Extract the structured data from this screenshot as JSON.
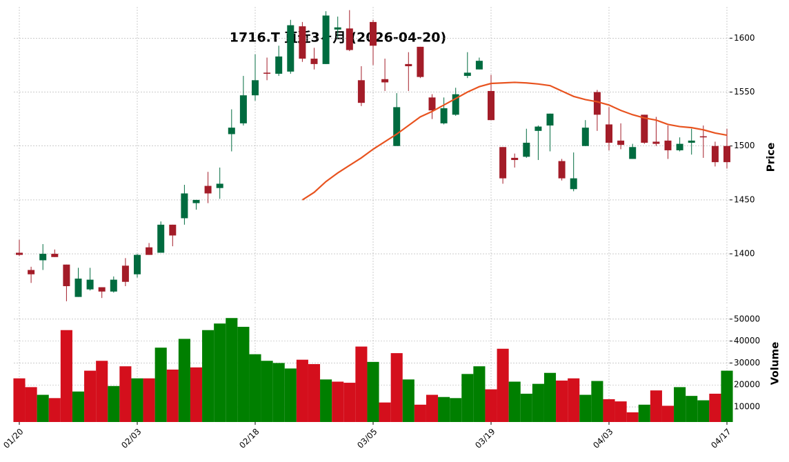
{
  "chart_data": {
    "type": "candlestick",
    "title": "1716.T 直近3ヶ月 (2026-04-20)",
    "y_label": "Price",
    "y2_label": "Volume",
    "categories": [
      "01/20",
      null,
      null,
      null,
      null,
      null,
      null,
      null,
      null,
      null,
      "02/03",
      null,
      null,
      null,
      null,
      null,
      null,
      null,
      null,
      null,
      "02/18",
      null,
      null,
      null,
      null,
      null,
      null,
      null,
      null,
      null,
      "03/05",
      null,
      null,
      null,
      null,
      null,
      null,
      null,
      null,
      null,
      "03/19",
      null,
      null,
      null,
      null,
      null,
      null,
      null,
      null,
      null,
      "04/03",
      null,
      null,
      null,
      null,
      null,
      null,
      null,
      null,
      null,
      "04/17"
    ],
    "open": [
      1401,
      1385,
      1394,
      1400,
      1390,
      1360,
      1367,
      1369,
      1365,
      1389,
      1381,
      1406,
      1401,
      1427,
      1433,
      1447,
      1463,
      1461,
      1511,
      1521,
      1547,
      1568,
      1567,
      1569,
      1611,
      1581,
      1576,
      1608,
      1609,
      1561,
      1615,
      1562,
      1500,
      1576,
      1592,
      1545,
      1521,
      1529,
      1565,
      1571,
      1551,
      1499,
      1489,
      1490,
      1514,
      1519,
      1486,
      1460,
      1500,
      1550,
      1520,
      1505,
      1488,
      1529,
      1504,
      1505,
      1496,
      1503,
      1509,
      1500,
      1500
    ],
    "high": [
      1413,
      1388,
      1409,
      1404,
      1390,
      1387,
      1387,
      1369,
      1379,
      1396,
      1400,
      1410,
      1430,
      1427,
      1464,
      1450,
      1476,
      1480,
      1534,
      1565,
      1585,
      1582,
      1593,
      1617,
      1615,
      1591,
      1625,
      1620,
      1626,
      1574,
      1617,
      1581,
      1549,
      1587,
      1592,
      1548,
      1545,
      1554,
      1587,
      1582,
      1566,
      1499,
      1493,
      1516,
      1519,
      1530,
      1488,
      1494,
      1524,
      1552,
      1536,
      1521,
      1502,
      1529,
      1527,
      1519,
      1508,
      1516,
      1519,
      1504,
      1516
    ],
    "low": [
      1398,
      1373,
      1385,
      1397,
      1356,
      1360,
      1366,
      1359,
      1364,
      1370,
      1378,
      1399,
      1401,
      1407,
      1427,
      1441,
      1447,
      1451,
      1495,
      1519,
      1542,
      1561,
      1565,
      1567,
      1578,
      1571,
      1576,
      1600,
      1588,
      1537,
      1575,
      1551,
      1500,
      1551,
      1563,
      1525,
      1520,
      1528,
      1563,
      1571,
      1524,
      1465,
      1480,
      1489,
      1487,
      1495,
      1468,
      1458,
      1500,
      1514,
      1496,
      1497,
      1488,
      1502,
      1500,
      1488,
      1495,
      1492,
      1489,
      1481,
      1479
    ],
    "close": [
      1399,
      1381,
      1400,
      1397,
      1370,
      1377,
      1376,
      1365,
      1376,
      1374,
      1399,
      1399,
      1427,
      1417,
      1456,
      1450,
      1456,
      1465,
      1517,
      1547,
      1561,
      1567,
      1583,
      1612,
      1581,
      1576,
      1621,
      1610,
      1589,
      1540,
      1593,
      1559,
      1536,
      1574,
      1564,
      1533,
      1535,
      1548,
      1568,
      1579,
      1524,
      1470,
      1487,
      1503,
      1518,
      1530,
      1470,
      1470,
      1517,
      1529,
      1503,
      1501,
      1499,
      1503,
      1502,
      1496,
      1502,
      1505,
      1508,
      1485,
      1485
    ],
    "up_color": "#006b3f",
    "down_color": "#a31c28",
    "ma": {
      "color": "#e8531f",
      "values": [
        null,
        null,
        null,
        null,
        null,
        null,
        null,
        null,
        null,
        null,
        null,
        null,
        null,
        null,
        null,
        null,
        null,
        null,
        null,
        null,
        null,
        null,
        null,
        null,
        1450,
        1457,
        1467,
        1475,
        1482,
        1489,
        1497,
        1504,
        1511,
        1519,
        1527,
        1532,
        1538,
        1544,
        1550,
        1555,
        1558,
        1558.5,
        1559,
        1558.5,
        1557.5,
        1556,
        1551,
        1546,
        1543,
        1541,
        1538,
        1533,
        1529,
        1526,
        1524,
        1520,
        1518,
        1517,
        1515,
        1512,
        1510
      ]
    },
    "volume": [
      23000,
      19000,
      15500,
      14000,
      45000,
      17000,
      26500,
      31000,
      19500,
      28500,
      23000,
      23000,
      37000,
      27000,
      41000,
      28000,
      45000,
      48000,
      50500,
      46500,
      34000,
      31000,
      30000,
      27500,
      31500,
      29500,
      22500,
      21500,
      21000,
      37500,
      30500,
      12000,
      34500,
      22500,
      11000,
      15500,
      14500,
      14000,
      25000,
      28500,
      18000,
      36500,
      21500,
      16000,
      20500,
      25500,
      22000,
      23000,
      15500,
      21800,
      13500,
      12500,
      7500,
      11000,
      17500,
      10500,
      19000,
      15000,
      13000,
      16000,
      26500
    ],
    "volume_colors": [
      "#d40f1c",
      "#d40f1c",
      "#007f00",
      "#d40f1c",
      "#d40f1c",
      "#007f00",
      "#d40f1c",
      "#d40f1c",
      "#007f00",
      "#d40f1c",
      "#007f00",
      "#d40f1c",
      "#007f00",
      "#d40f1c",
      "#007f00",
      "#d40f1c",
      "#007f00",
      "#007f00",
      "#007f00",
      "#007f00",
      "#007f00",
      "#007f00",
      "#007f00",
      "#007f00",
      "#d40f1c",
      "#d40f1c",
      "#007f00",
      "#d40f1c",
      "#d40f1c",
      "#d40f1c",
      "#007f00",
      "#d40f1c",
      "#d40f1c",
      "#007f00",
      "#d40f1c",
      "#d40f1c",
      "#007f00",
      "#007f00",
      "#007f00",
      "#007f00",
      "#d40f1c",
      "#d40f1c",
      "#007f00",
      "#007f00",
      "#007f00",
      "#007f00",
      "#d40f1c",
      "#d40f1c",
      "#007f00",
      "#007f00",
      "#d40f1c",
      "#d40f1c",
      "#d40f1c",
      "#007f00",
      "#d40f1c",
      "#d40f1c",
      "#007f00",
      "#007f00",
      "#007f00",
      "#d40f1c",
      "#007f00"
    ],
    "ylim": [
      1354,
      1629
    ],
    "yticks": [
      1400,
      1450,
      1500,
      1550,
      1600
    ],
    "y2lim": [
      3100,
      55600
    ],
    "y2ticks": [
      10000,
      20000,
      30000,
      40000,
      50000
    ],
    "grid": true
  }
}
